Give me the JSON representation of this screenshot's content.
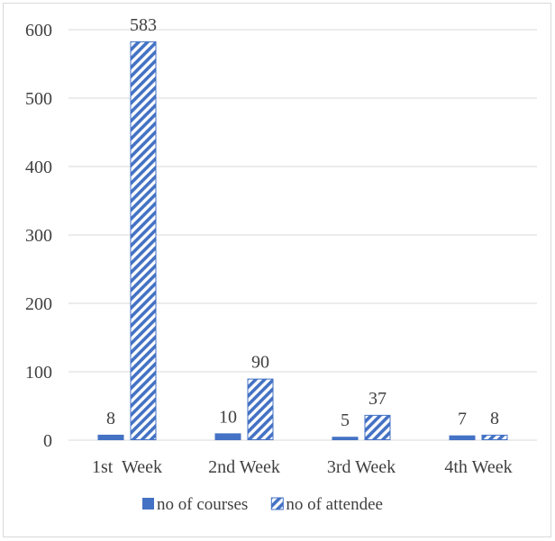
{
  "chart_data": {
    "type": "bar",
    "categories": [
      "1st  Week",
      "2nd Week",
      "3rd Week",
      "4th Week"
    ],
    "series": [
      {
        "name": "no of courses",
        "values": [
          8,
          10,
          5,
          7
        ],
        "fill": "solid"
      },
      {
        "name": "no of attendee",
        "values": [
          583,
          90,
          37,
          8
        ],
        "fill": "diagonal-hatch"
      }
    ],
    "ylim": [
      0,
      600
    ],
    "yticks": [
      0,
      100,
      200,
      300,
      400,
      500,
      600
    ],
    "grid": true,
    "legend_position": "bottom",
    "data_labels": true
  },
  "colors": {
    "bar": "#4472c4",
    "grid": "#d9d9d9",
    "text": "#404040"
  }
}
